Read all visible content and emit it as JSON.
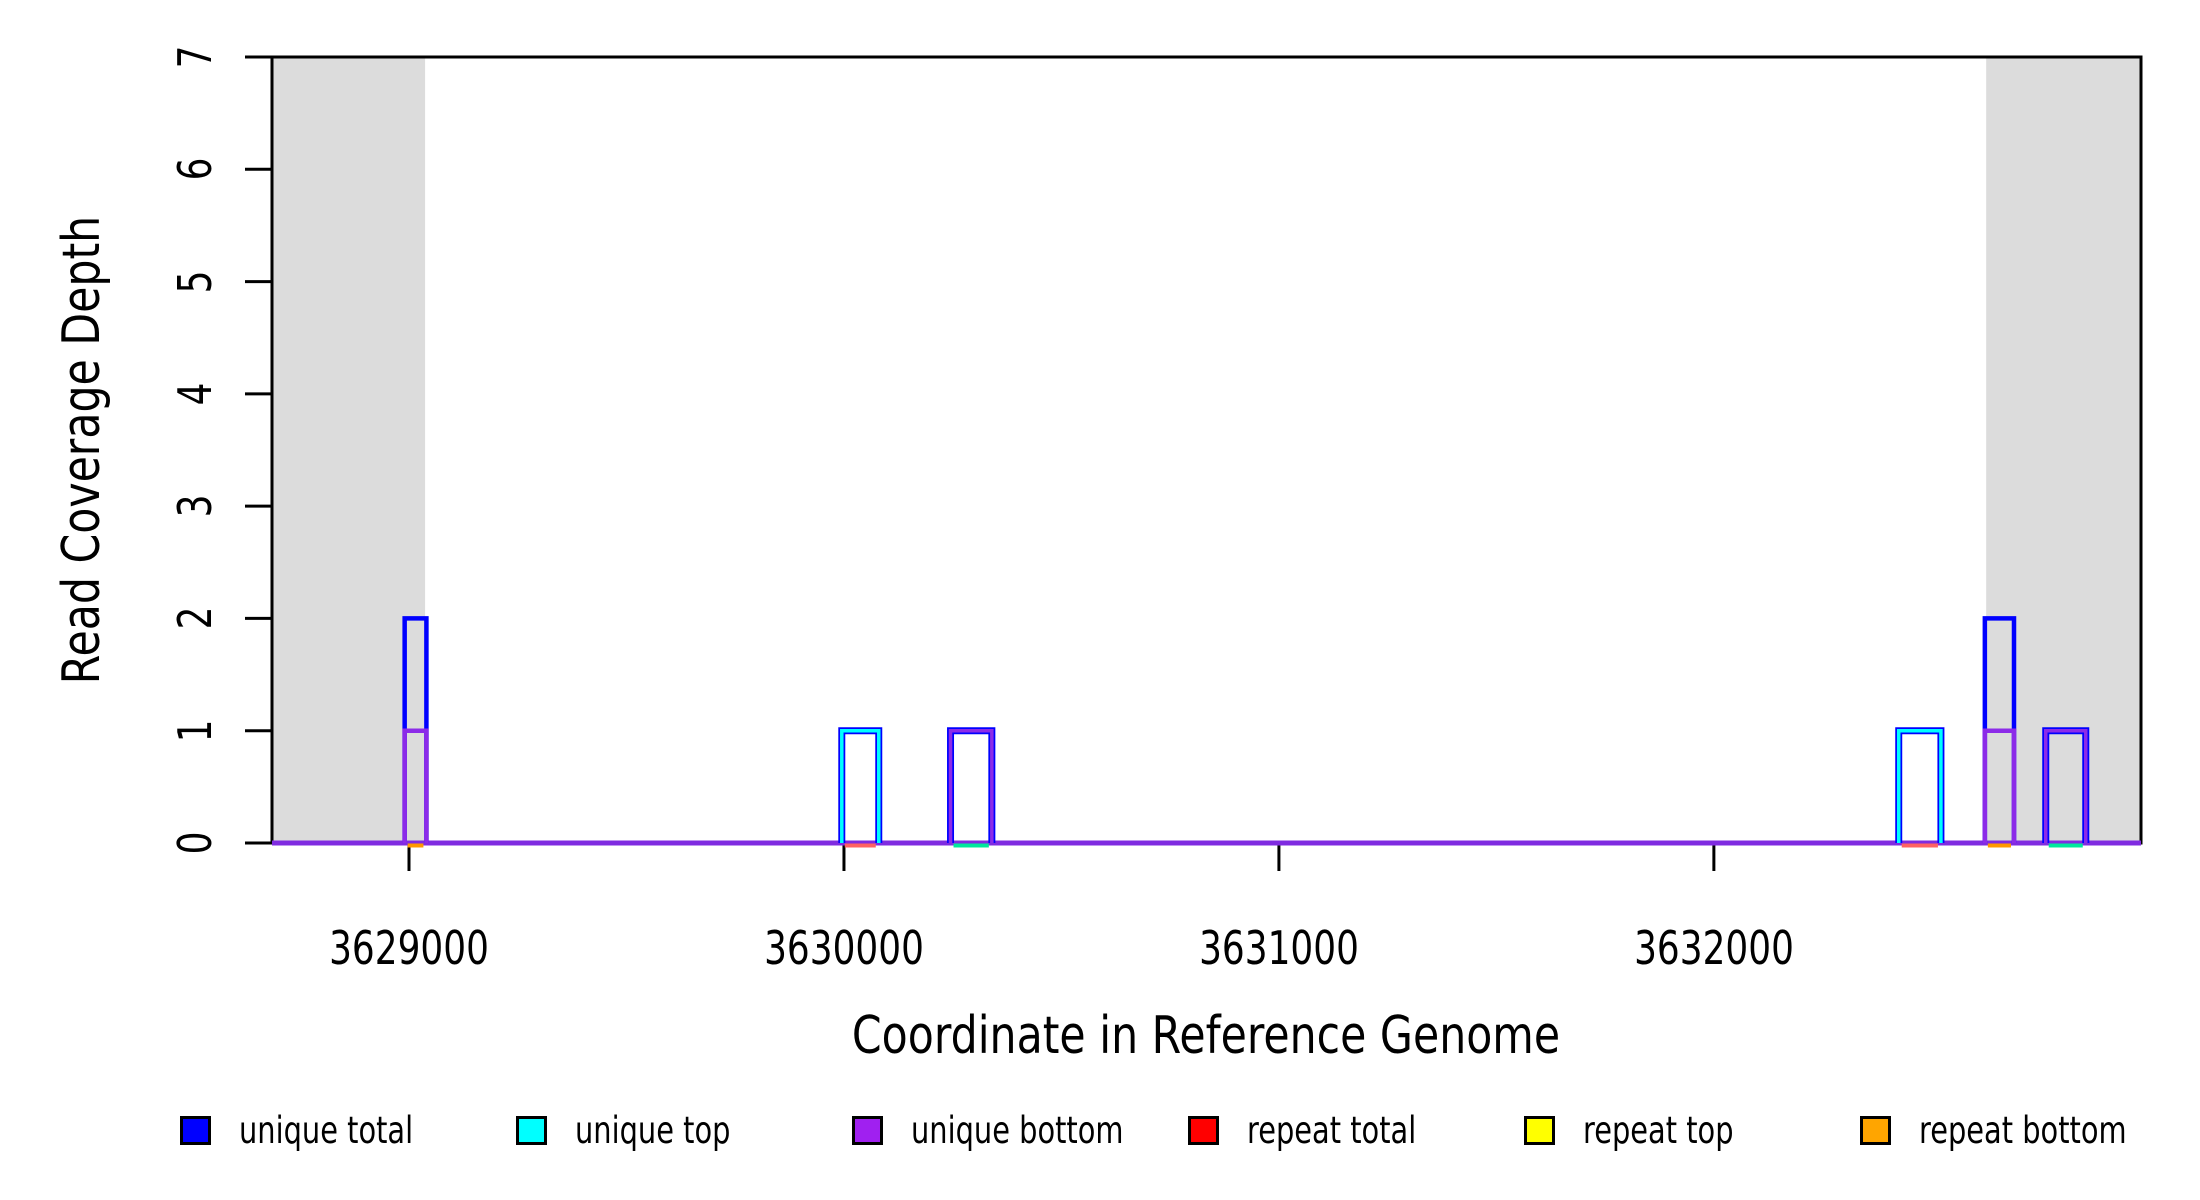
{
  "chart_data": {
    "type": "line",
    "subtype": "step-coverage-depth",
    "title": "",
    "xlabel": "Coordinate in Reference Genome",
    "ylabel": "Read Coverage Depth",
    "xlim": [
      3628685,
      3632982
    ],
    "ylim": [
      0,
      7
    ],
    "grid": false,
    "x_ticks": [
      3629000,
      3630000,
      3631000,
      3632000
    ],
    "x_tick_labels": [
      "3629000",
      "3630000",
      "3631000",
      "3632000"
    ],
    "y_ticks": [
      0,
      1,
      2,
      3,
      4,
      5,
      6,
      7
    ],
    "y_tick_labels": [
      "0",
      "1",
      "2",
      "3",
      "4",
      "5",
      "6",
      "7"
    ],
    "shade_color": "#DCDCDC",
    "shaded_regions": [
      {
        "x": [
          3628685,
          3629037
        ]
      },
      {
        "x": [
          3632626,
          3632982
        ]
      }
    ],
    "baseline_depth": 0,
    "baseline_color": "#7F2BE0",
    "series_colors": {
      "unique_total": "#0000FF",
      "unique_top": "#00FFFF",
      "unique_bottom": "#A020F0",
      "repeat_total": "#FF0000",
      "repeat_top": "#FFFF00",
      "repeat_bottom": "#FFA500"
    },
    "bar_purple_render": "#8C2BE8",
    "bars": [
      {
        "x": [
          3628990,
          3629040
        ],
        "unique_total": 2,
        "unique_top": 0,
        "unique_bottom": 1,
        "baseline_accent": "#FF9800"
      },
      {
        "x": [
          3629995,
          3630080
        ],
        "unique_total": 1,
        "unique_top": 1,
        "unique_bottom": 0,
        "baseline_accent": "#FF6262"
      },
      {
        "x": [
          3630245,
          3630340
        ],
        "unique_total": 1,
        "unique_top": 0,
        "unique_bottom": 1,
        "baseline_accent": "#00E89C"
      },
      {
        "x": [
          3632425,
          3632522
        ],
        "unique_total": 1,
        "unique_top": 1,
        "unique_bottom": 0,
        "baseline_accent": "#FF6262"
      },
      {
        "x": [
          3632623,
          3632690
        ],
        "unique_total": 2,
        "unique_top": 0,
        "unique_bottom": 1,
        "baseline_accent": "#FF9800"
      },
      {
        "x": [
          3632763,
          3632855
        ],
        "unique_total": 1,
        "unique_top": 0,
        "unique_bottom": 1,
        "baseline_accent": "#00E89C"
      }
    ],
    "legend_position": "bottom"
  },
  "legend": {
    "items": [
      {
        "label": "unique total",
        "color": "#0000FF"
      },
      {
        "label": "unique top",
        "color": "#00FFFF"
      },
      {
        "label": "unique bottom",
        "color": "#A020F0"
      },
      {
        "label": "repeat total",
        "color": "#FF0000"
      },
      {
        "label": "repeat top",
        "color": "#FFFF00"
      },
      {
        "label": "repeat bottom",
        "color": "#FFA500"
      }
    ]
  }
}
